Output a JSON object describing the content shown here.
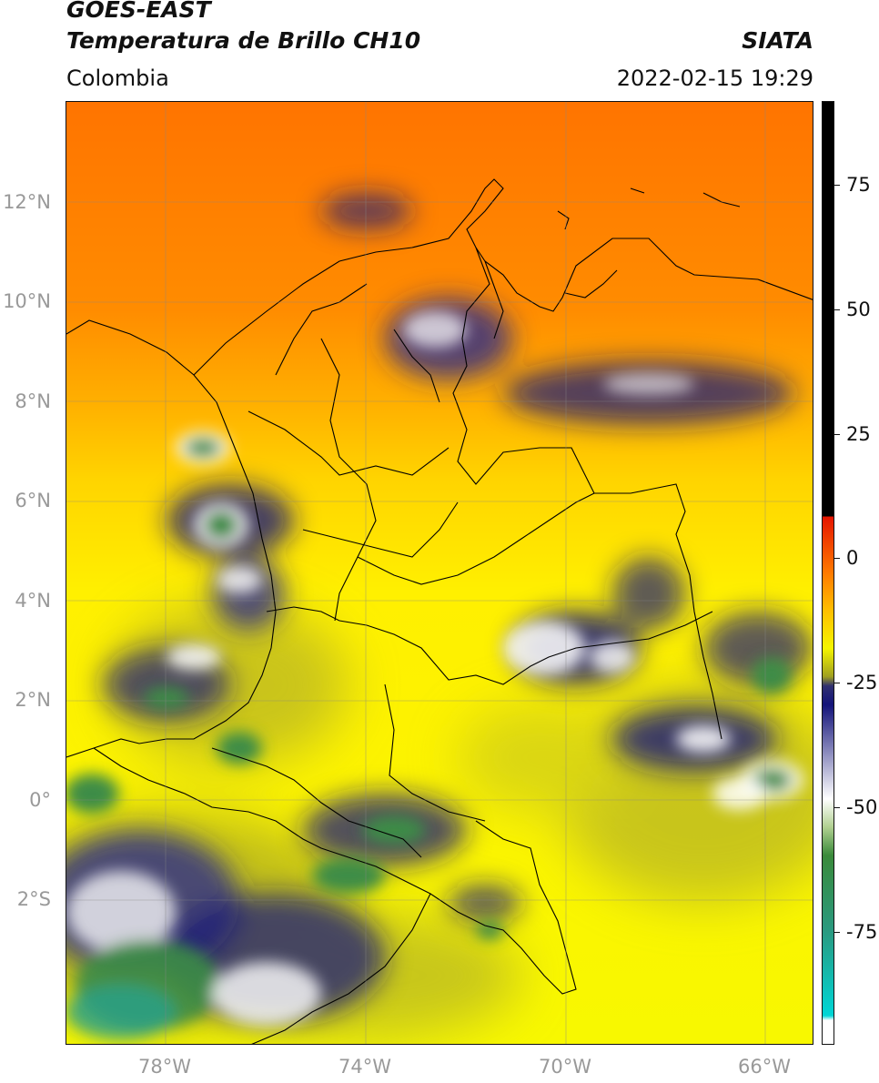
{
  "header": {
    "satellite": "GOES-EAST",
    "product": "Temperatura de Brillo CH10",
    "brand": "SIATA",
    "region": "Colombia",
    "timestamp": "2022-02-15 19:29"
  },
  "axes": {
    "lat_labels": [
      "12°N",
      "10°N",
      "8°N",
      "6°N",
      "4°N",
      "2°N",
      "0°",
      "2°S"
    ],
    "lon_labels": [
      "78°W",
      "74°W",
      "70°W",
      "66°W"
    ]
  },
  "colorbar": {
    "ticks": [
      "75",
      "50",
      "25",
      "0",
      "-25",
      "-50",
      "-75"
    ],
    "colors": {
      "warm": "#ff7a00",
      "mild": "#ffbf00",
      "cool": "#f5f500",
      "olive": "#a0a020",
      "cold": "#14147a",
      "white": "#ffffff",
      "green": "#3a8a3a",
      "cyan": "#00d6d6",
      "hot": "#000000",
      "red": "#e51400"
    }
  }
}
